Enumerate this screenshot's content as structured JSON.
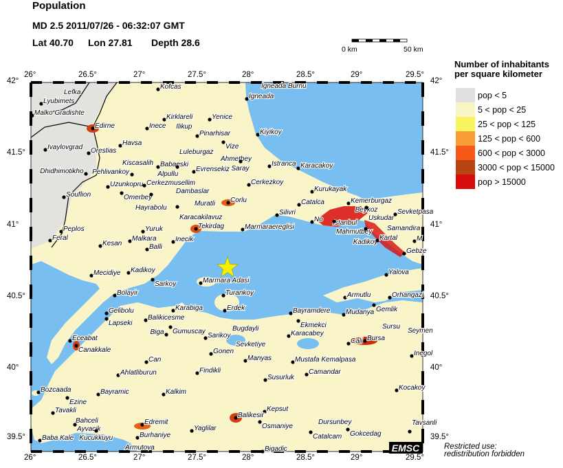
{
  "header": {
    "title": "Population",
    "event": "MD 2.5  2011/07/26 - 06:32:07 GMT",
    "lat_label": "Lat 40.70",
    "lon_label": "Lon  27.81",
    "depth_label": "Depth  28.6"
  },
  "scale_bar": {
    "start": "0 km",
    "end": "50 km"
  },
  "axes": {
    "lon_ticks": [
      "26°",
      "26.5°",
      "27°",
      "27.5°",
      "28°",
      "28.5°",
      "29°",
      "29.5°"
    ],
    "lat_ticks": [
      "42°",
      "41.5°",
      "41°",
      "40.5°",
      "40°",
      "39.5°"
    ]
  },
  "legend": {
    "title_line1": "Number of inhabitants",
    "title_line2": "per square kilometer",
    "items": [
      {
        "label": "pop < 5",
        "color": "#e0e0e0"
      },
      {
        "label": "5 < pop < 25",
        "color": "#f8f6c4"
      },
      {
        "label": "25 < pop < 125",
        "color": "#f8f460"
      },
      {
        "label": "125 < pop < 600",
        "color": "#f89c34"
      },
      {
        "label": "600 < pop < 3000",
        "color": "#f85818"
      },
      {
        "label": "3000 < pop < 15000",
        "color": "#b84412"
      },
      {
        "label": "pop > 15000",
        "color": "#d80c0c"
      }
    ]
  },
  "epicenter": {
    "lat": 40.7,
    "lon": 27.81,
    "icon": "star-icon",
    "color": "#f8f000"
  },
  "colors": {
    "sea": "#78bef0",
    "land": "#f9f5c8",
    "foreign_land": "#e2e2de"
  },
  "cities": [
    "Kofcas",
    "Lefka",
    "Lyubimets",
    "Malko Gradishte",
    "Edirne",
    "Kirklareli",
    "Ilikup",
    "Yenice",
    "Inece",
    "Pinarhisar",
    "Havsa",
    "Ivaylovgrad",
    "Orestias",
    "Babaeski",
    "Alpullu",
    "Luleburgaz",
    "Kiscasalih",
    "Pehlivankoy",
    "Dhidhimotikho",
    "Evrensekiz",
    "Uzunkopru",
    "Cerkezmusellim",
    "Dambaslar",
    "Omerbey",
    "Hayrabolu",
    "Souflion",
    "Muratli",
    "Karacakilavuz",
    "Tekirdag",
    "Yuruk",
    "Peplos",
    "Malkara",
    "Feral",
    "Inecik",
    "Kesan",
    "Balli",
    "Igneada",
    "Igneada Burnu",
    "Kiyikoy",
    "Vize",
    "Ahmetbey",
    "Saray",
    "Istranca",
    "Karacakoy",
    "Cerkezkoy",
    "Kurukayak",
    "Corlu",
    "Catalca",
    "Kemerburgaz",
    "Beykoz",
    "Uskudar",
    "Istanbul",
    "Sevketpasa",
    "Silivri",
    "No",
    "Mahmutbey",
    "Kadikoy",
    "Samandira",
    "Marmaraereglisi",
    "Kartal",
    "M",
    "Gebze",
    "Mecidiye",
    "Kadikoy",
    "Sarkoy",
    "Marmara Adasi",
    "Bolayir",
    "Turankoy",
    "Karabiga",
    "Erdek",
    "Gelibolu",
    "Lapseki",
    "Balikicesme",
    "Gumuscay",
    "Biga",
    "Sarikoy",
    "Eceabat",
    "Canakkale",
    "Gonen",
    "Can",
    "Findikli",
    "Ahlatliburun",
    "Bozcaada",
    "Ezine",
    "Bayramic",
    "Kalkim",
    "Tavakli",
    "Bahceli",
    "Ayvacik",
    "Edremit",
    "Kucukkuyu",
    "Yaglilar",
    "Burhaniye",
    "Baba Kale",
    "Armutova",
    "Yalova",
    "Armutlu",
    "Orhangazi",
    "Gemlik",
    "Bayramdere",
    "Mudanya",
    "Ekmekci",
    "Bugdayli",
    "Karacabey",
    "Cali",
    "Bursa",
    "Sursu",
    "Seymen",
    "Sevketiye",
    "Manyas",
    "Inegol",
    "Mustafa Kemalpasa",
    "Camandar",
    "Susurluk",
    "Kocakoy",
    "Kepsut",
    "Balikesir",
    "Osmaniye",
    "Dursunbey",
    "Catalcam",
    "Gokcedag",
    "Tavsanli",
    "Bigadic"
  ],
  "logo": "EMSC",
  "notice_line1": "Restricted use:",
  "notice_line2": "redistribution forbidden"
}
